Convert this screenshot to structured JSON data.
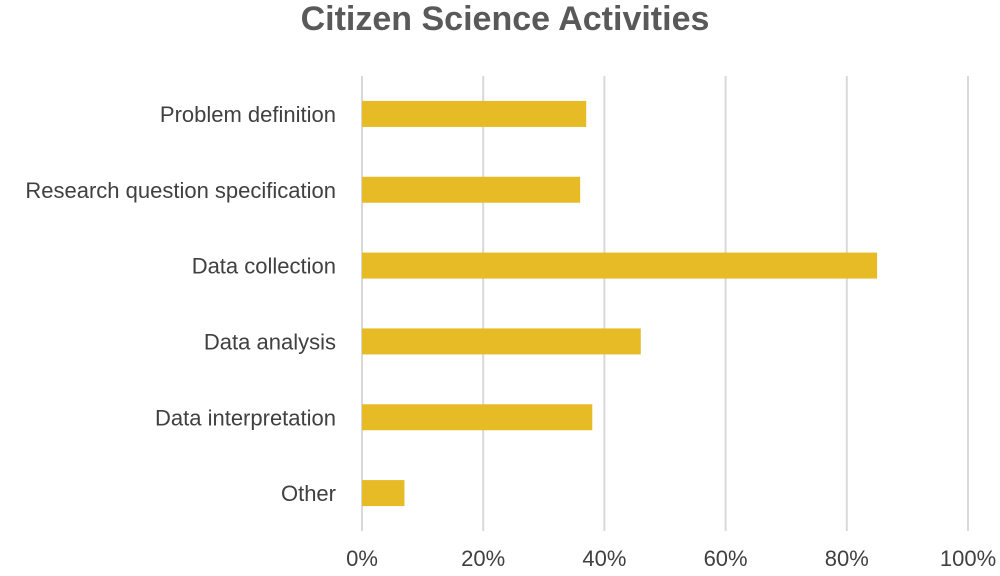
{
  "chart_data": {
    "type": "bar",
    "orientation": "horizontal",
    "title": "Citizen Science Activities",
    "xlabel": "",
    "ylabel": "",
    "categories": [
      "Problem definition",
      "Research question specification",
      "Data collection",
      "Data analysis",
      "Data interpretation",
      "Other"
    ],
    "values": [
      37,
      36,
      85,
      46,
      38,
      7
    ],
    "xlim": [
      0,
      100
    ],
    "xticks": [
      "0%",
      "20%",
      "40%",
      "60%",
      "80%",
      "100%"
    ],
    "grid": true,
    "legend": "none",
    "bar_color": "#E6BB26"
  }
}
